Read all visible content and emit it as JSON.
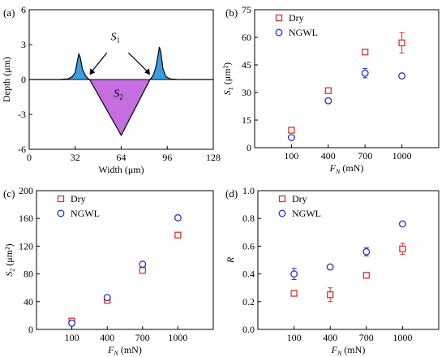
{
  "colors": {
    "dry": "#d8322b",
    "ngwl": "#2233c4",
    "s1_fill": "#3a9ee3",
    "s2_fill": "#c56ee0",
    "black": "#000000"
  },
  "chart_data": [
    {
      "panel": "(a)",
      "type": "area",
      "xlabel": "Width (μm)",
      "ylabel": "Depth (μm)",
      "xlim": [
        0,
        128
      ],
      "ylim": [
        -6,
        6
      ],
      "xticks": [
        "0",
        "32",
        "64",
        "96",
        "128"
      ],
      "yticks": [
        "6",
        "3",
        "0",
        "-3",
        "-6"
      ],
      "annotations": {
        "s1": "S",
        "s1_sub": "1",
        "s2": "S",
        "s2_sub": "2"
      },
      "profile": [
        {
          "x": 0,
          "y": 0
        },
        {
          "x": 20,
          "y": 0
        },
        {
          "x": 27,
          "y": 0.05
        },
        {
          "x": 30,
          "y": 0.25
        },
        {
          "x": 32,
          "y": 0.6
        },
        {
          "x": 33.5,
          "y": 1.6
        },
        {
          "x": 34.5,
          "y": 2.2
        },
        {
          "x": 35.5,
          "y": 1.9
        },
        {
          "x": 37,
          "y": 0.9
        },
        {
          "x": 39,
          "y": 0.35
        },
        {
          "x": 41,
          "y": 0.08
        },
        {
          "x": 42,
          "y": 0
        },
        {
          "x": 64,
          "y": -4.8
        },
        {
          "x": 84,
          "y": 0
        },
        {
          "x": 86,
          "y": 0.3
        },
        {
          "x": 88,
          "y": 1.0
        },
        {
          "x": 89.5,
          "y": 2.0
        },
        {
          "x": 90.5,
          "y": 2.8
        },
        {
          "x": 91.5,
          "y": 2.4
        },
        {
          "x": 93,
          "y": 0.9
        },
        {
          "x": 95,
          "y": 0.25
        },
        {
          "x": 98,
          "y": 0.05
        },
        {
          "x": 104,
          "y": 0
        },
        {
          "x": 128,
          "y": 0
        }
      ]
    },
    {
      "panel": "(b)",
      "type": "scatter",
      "categories": [
        "100",
        "400",
        "700",
        "1000"
      ],
      "xlabel": "F",
      "xlabel_sub": "N",
      "xlabel_unit": " (mN)",
      "ylabel": "S",
      "ylabel_sub": "1",
      "ylabel_unit": " (μm²)",
      "ylim": [
        0,
        75
      ],
      "yticks": [
        0,
        15,
        30,
        45,
        60,
        75
      ],
      "legend_position": "top-left",
      "series": [
        {
          "name": "Dry",
          "marker": "square",
          "values": [
            9.5,
            31,
            52,
            57
          ],
          "errors": [
            0.8,
            0.8,
            1.5,
            5.5
          ]
        },
        {
          "name": "NGWL",
          "marker": "circle",
          "values": [
            5.5,
            25.5,
            40.5,
            39
          ],
          "errors": [
            0.5,
            0.6,
            2.5,
            0.4
          ]
        }
      ]
    },
    {
      "panel": "(c)",
      "type": "scatter",
      "categories": [
        "100",
        "400",
        "700",
        "1000"
      ],
      "xlabel": "F",
      "xlabel_sub": "N",
      "xlabel_unit": " (mN)",
      "ylabel": "S",
      "ylabel_sub": "2",
      "ylabel_unit": " (μm²)",
      "ylim": [
        0,
        200
      ],
      "yticks": [
        0,
        40,
        80,
        120,
        160,
        200
      ],
      "legend_position": "top-left",
      "series": [
        {
          "name": "Dry",
          "marker": "square",
          "values": [
            12,
            42,
            85,
            136
          ],
          "errors": [
            1.0,
            1.5,
            1.5,
            2.5
          ]
        },
        {
          "name": "NGWL",
          "marker": "circle",
          "values": [
            9,
            46,
            94,
            161
          ],
          "errors": [
            0.8,
            1.2,
            1.5,
            1.5
          ]
        }
      ]
    },
    {
      "panel": "(d)",
      "type": "scatter",
      "categories": [
        "100",
        "400",
        "700",
        "1000"
      ],
      "xlabel": "F",
      "xlabel_sub": "N",
      "xlabel_unit": " (mN)",
      "ylabel": "R",
      "ylabel_sub": "",
      "ylabel_unit": "",
      "ylim": [
        0,
        1.0
      ],
      "yticks": [
        "0.0",
        "0.2",
        "0.4",
        "0.6",
        "0.8",
        "1.0"
      ],
      "legend_position": "top-left",
      "series": [
        {
          "name": "Dry",
          "marker": "square",
          "values": [
            0.26,
            0.25,
            0.39,
            0.58
          ],
          "errors": [
            0.02,
            0.05,
            0.01,
            0.04
          ]
        },
        {
          "name": "NGWL",
          "marker": "circle",
          "values": [
            0.4,
            0.45,
            0.56,
            0.76
          ],
          "errors": [
            0.04,
            0.01,
            0.03,
            0.01
          ]
        }
      ]
    }
  ]
}
